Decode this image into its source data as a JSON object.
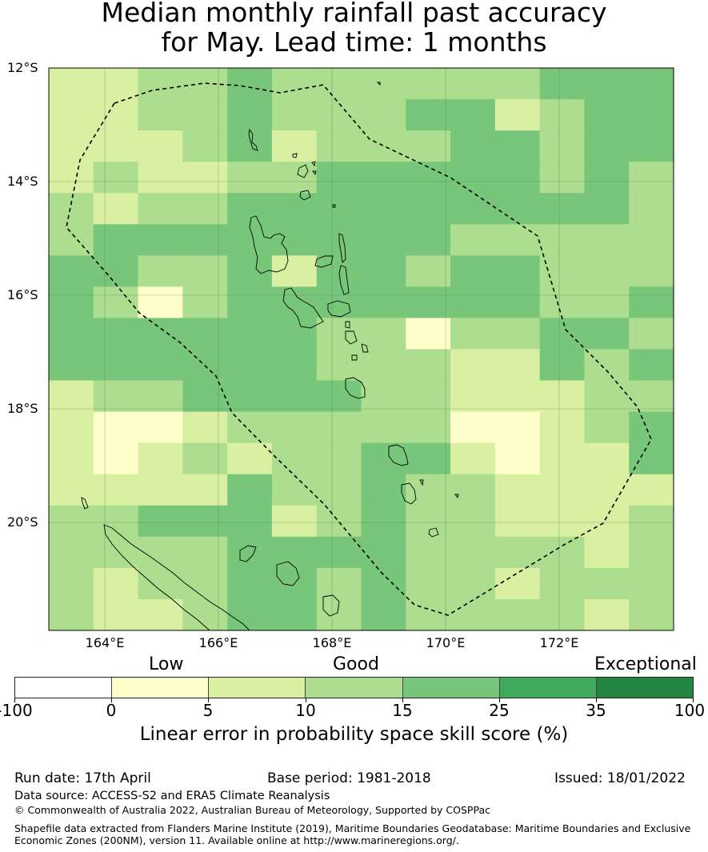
{
  "title": {
    "line1": "Median monthly rainfall past accuracy",
    "line2": "for May. Lead time: 1 months"
  },
  "map": {
    "lat_labels": [
      "12°S",
      "14°S",
      "16°S",
      "18°S",
      "20°S"
    ],
    "lon_labels": [
      "164°E",
      "166°E",
      "168°E",
      "170°E",
      "172°E"
    ],
    "grid": [
      [
        2,
        2,
        3,
        3,
        4,
        3,
        3,
        3,
        3,
        3,
        3,
        4,
        4,
        4
      ],
      [
        2,
        2,
        3,
        3,
        4,
        3,
        3,
        3,
        4,
        4,
        2,
        3,
        4,
        4
      ],
      [
        2,
        2,
        2,
        3,
        4,
        2,
        3,
        3,
        3,
        4,
        4,
        3,
        4,
        4
      ],
      [
        2,
        3,
        2,
        2,
        3,
        3,
        4,
        4,
        4,
        4,
        4,
        3,
        4,
        3
      ],
      [
        3,
        2,
        3,
        3,
        4,
        4,
        4,
        4,
        4,
        4,
        4,
        4,
        4,
        3
      ],
      [
        3,
        4,
        4,
        4,
        4,
        4,
        4,
        4,
        4,
        3,
        3,
        3,
        3,
        3
      ],
      [
        4,
        4,
        3,
        3,
        4,
        2,
        4,
        4,
        3,
        4,
        4,
        3,
        3,
        3
      ],
      [
        4,
        3,
        1,
        3,
        4,
        4,
        4,
        4,
        4,
        4,
        4,
        3,
        3,
        4
      ],
      [
        4,
        4,
        4,
        4,
        4,
        4,
        3,
        3,
        1,
        3,
        3,
        4,
        4,
        3
      ],
      [
        4,
        4,
        4,
        4,
        4,
        4,
        3,
        3,
        3,
        2,
        2,
        4,
        3,
        4
      ],
      [
        2,
        3,
        3,
        4,
        4,
        4,
        4,
        3,
        3,
        2,
        2,
        2,
        3,
        3
      ],
      [
        2,
        1,
        1,
        2,
        3,
        3,
        3,
        3,
        3,
        1,
        1,
        2,
        3,
        4
      ],
      [
        2,
        1,
        2,
        3,
        2,
        3,
        3,
        4,
        4,
        2,
        1,
        2,
        2,
        4
      ],
      [
        2,
        2,
        2,
        2,
        4,
        3,
        3,
        4,
        3,
        3,
        2,
        2,
        2,
        2
      ],
      [
        3,
        3,
        4,
        4,
        4,
        2,
        3,
        4,
        3,
        3,
        2,
        2,
        2,
        3
      ],
      [
        3,
        3,
        3,
        3,
        4,
        4,
        4,
        4,
        3,
        3,
        3,
        3,
        2,
        3
      ],
      [
        3,
        2,
        3,
        3,
        4,
        4,
        3,
        4,
        3,
        3,
        2,
        3,
        3,
        3
      ],
      [
        3,
        2,
        2,
        3,
        4,
        4,
        3,
        4,
        3,
        3,
        3,
        3,
        2,
        3
      ]
    ]
  },
  "colorbar": {
    "category_labels": [
      "Low",
      "Good",
      "Exceptional"
    ],
    "colors": [
      "#ffffff",
      "#ffffcc",
      "#d9f0a3",
      "#addd8e",
      "#78c679",
      "#41ab5d",
      "#238443"
    ],
    "tick_labels": [
      "-100",
      "0",
      "5",
      "10",
      "15",
      "25",
      "35",
      "100"
    ],
    "axis_label": "Linear error in probability space skill score (%)"
  },
  "footer": {
    "run_date": "Run date: 17th April",
    "base_period": "Base period: 1981-2018",
    "issued": "Issued: 18/01/2022",
    "data_source": "Data source: ACCESS-S2 and ERA5 Climate Reanalysis",
    "copyright": "© Commonwealth of Australia 2022, Australian Bureau of Meteorology, Supported by COSPPac",
    "shapefile_line1": "Shapefile data extracted from Flanders Marine Institute (2019), Maritime Boundaries Geodatabase: Maritime Boundaries and Exclusive",
    "shapefile_line2": "Economic Zones (200NM), version 11. Available online at http://www.marineregions.org/."
  }
}
